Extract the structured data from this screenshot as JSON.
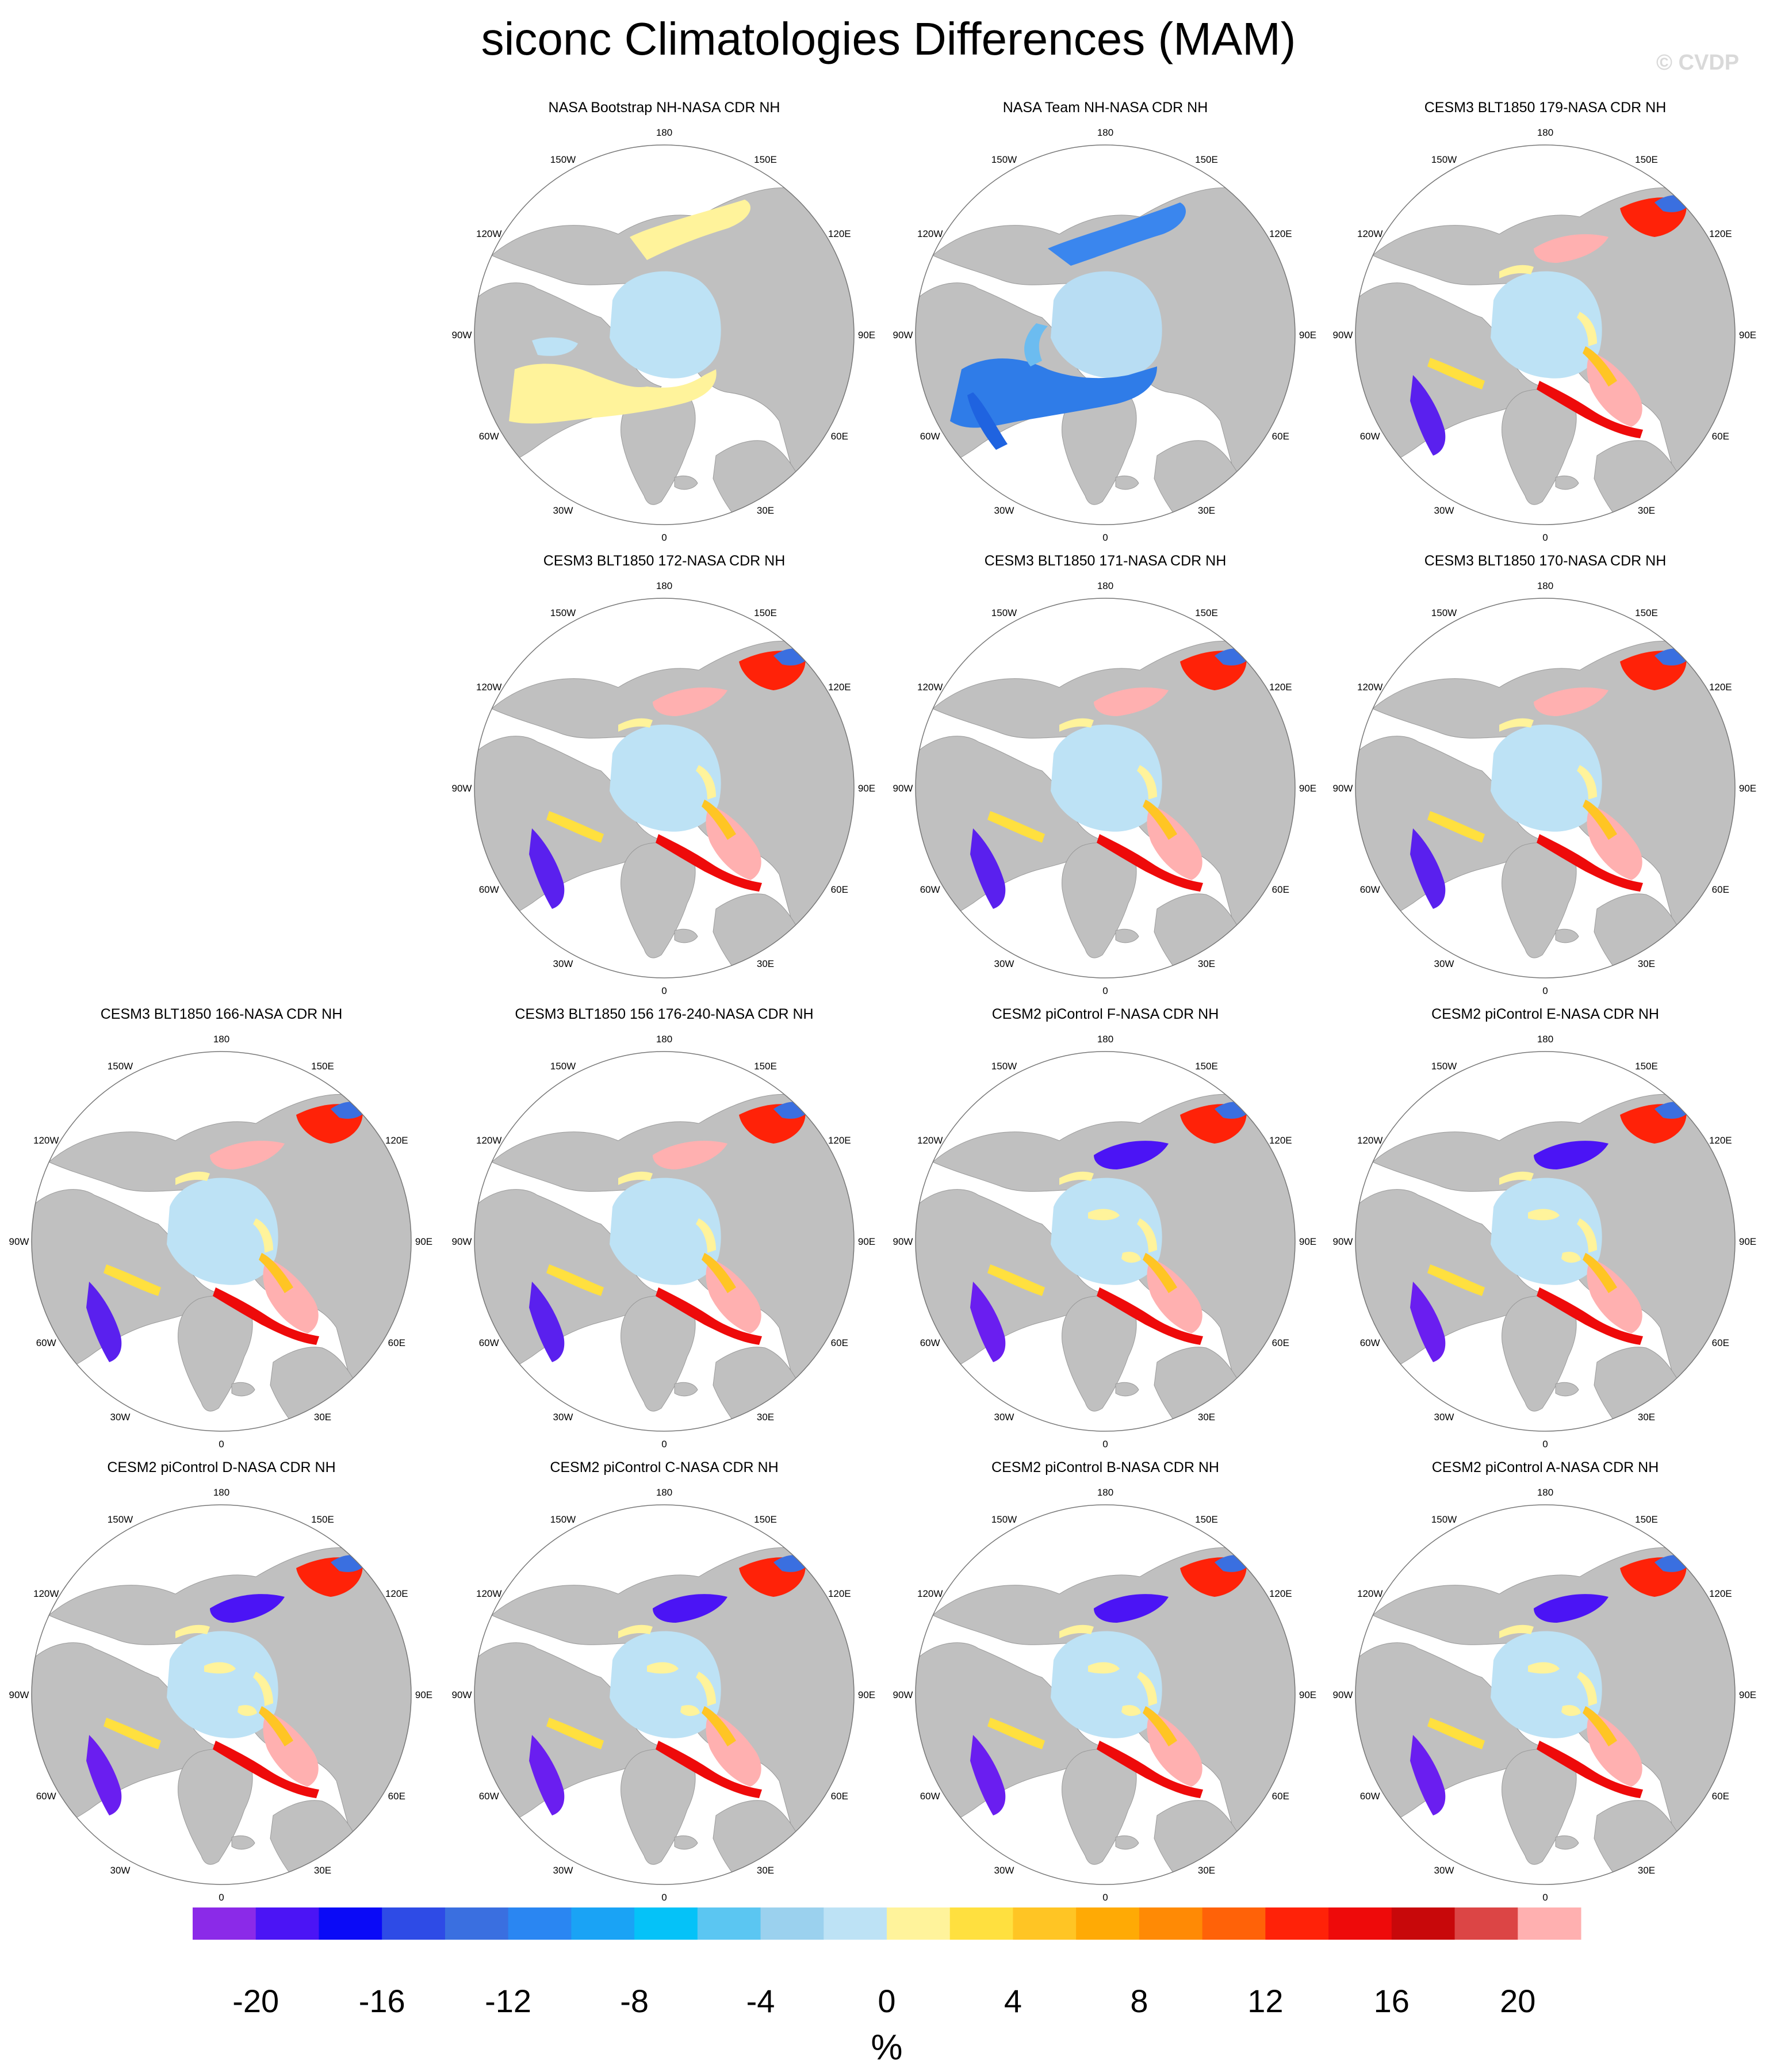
{
  "title": "siconc Climatologies Differences (MAM)",
  "watermark": "© CVDP",
  "lon_labels": [
    "180",
    "150E",
    "120E",
    "90E",
    "60E",
    "30E",
    "0",
    "30W",
    "60W",
    "90W",
    "120W",
    "150W"
  ],
  "panels": [
    {
      "title": "NASA Bootstrap NH-NASA CDR NH",
      "style": "boot"
    },
    {
      "title": "NASA Team NH-NASA CDR NH",
      "style": "team"
    },
    {
      "title": "CESM3 BLT1850 179-NASA CDR NH",
      "style": "model3"
    },
    {
      "title": "CESM3 BLT1850 172-NASA CDR NH",
      "style": "model3"
    },
    {
      "title": "CESM3 BLT1850 171-NASA CDR NH",
      "style": "model3"
    },
    {
      "title": "CESM3 BLT1850 170-NASA CDR NH",
      "style": "model3"
    },
    {
      "title": "CESM3 BLT1850 166-NASA CDR NH",
      "style": "model3"
    },
    {
      "title": "CESM3 BLT1850 156 176-240-NASA CDR NH",
      "style": "model3"
    },
    {
      "title": "CESM2 piControl F-NASA CDR NH",
      "style": "model2"
    },
    {
      "title": "CESM2 piControl E-NASA CDR NH",
      "style": "model2"
    },
    {
      "title": "CESM2 piControl D-NASA CDR NH",
      "style": "model2"
    },
    {
      "title": "CESM2 piControl C-NASA CDR NH",
      "style": "model2"
    },
    {
      "title": "CESM2 piControl B-NASA CDR NH",
      "style": "model2"
    },
    {
      "title": "CESM2 piControl A-NASA CDR NH",
      "style": "model2"
    }
  ],
  "colorbar": {
    "units": "%",
    "tick_labels": [
      "-20",
      "-16",
      "-12",
      "-8",
      "-4",
      "0",
      "4",
      "8",
      "12",
      "16",
      "20"
    ],
    "colors": [
      "#8b2ae8",
      "#4b14f5",
      "#0a0af7",
      "#2e4be6",
      "#3a6fe0",
      "#2a86f2",
      "#1aa3f5",
      "#05c2f8",
      "#5bc6f2",
      "#9bd1ee",
      "#bde2f5",
      "#fff39b",
      "#ffe03f",
      "#ffc524",
      "#ffaa05",
      "#ff8a05",
      "#ff6208",
      "#ff2208",
      "#ee0a0a",
      "#c8080a",
      "#dc4545",
      "#ffb0b0"
    ]
  },
  "map_colors": {
    "land": "#c0c0c0",
    "ocean": "#ffffff",
    "ice_negative_small": "#bde2f5",
    "ice_positive_small": "#fff39b"
  }
}
